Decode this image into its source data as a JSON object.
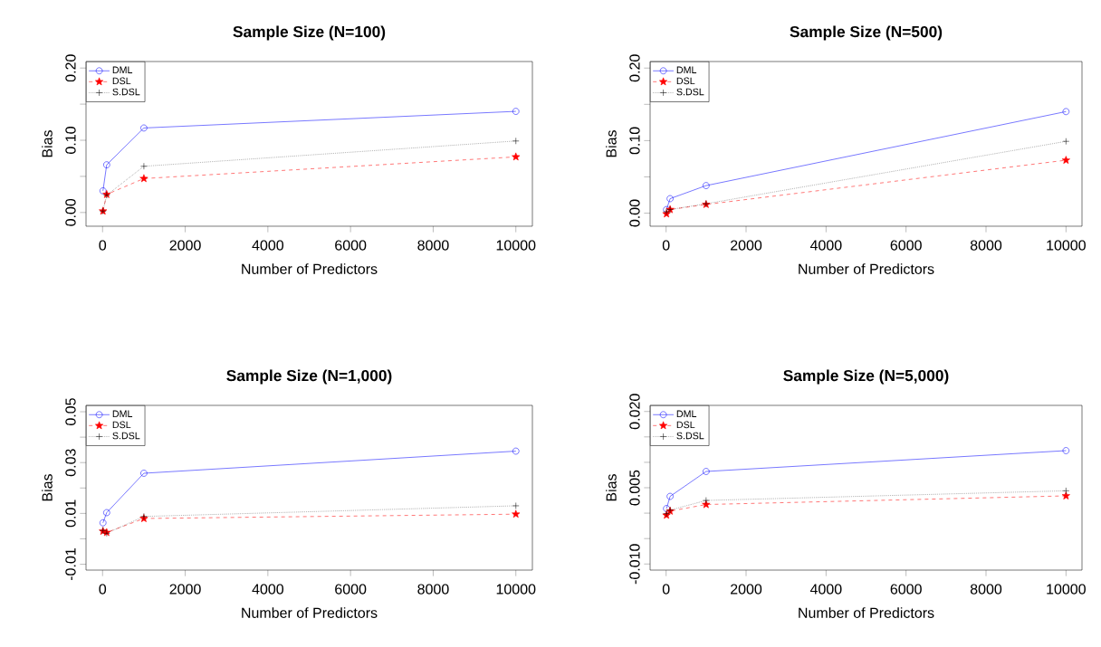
{
  "chart_data": [
    {
      "type": "line",
      "title": "Sample Size (N=100)",
      "xlabel": "Number of Predictors",
      "ylabel": "Bias",
      "x": [
        10,
        100,
        1000,
        10000
      ],
      "series": [
        {
          "name": "DML",
          "color": "#0000ff",
          "marker": "circle",
          "line_style": "solid",
          "values": [
            0.03,
            0.066,
            0.117,
            0.14
          ]
        },
        {
          "name": "DSL",
          "color": "#ff0000",
          "marker": "star",
          "line_style": "dashed",
          "values": [
            0.002,
            0.025,
            0.047,
            0.077
          ]
        },
        {
          "name": "S.DSL",
          "color": "#000000",
          "marker": "cross",
          "line_style": "dotted",
          "values": [
            0.002,
            0.024,
            0.064,
            0.099
          ]
        }
      ],
      "xlim": [
        -400,
        10400
      ],
      "ylim": [
        -0.019,
        0.209
      ],
      "xticks": [
        0,
        2000,
        4000,
        6000,
        8000,
        10000
      ],
      "yticks": [
        {
          "value": 0,
          "label": "0.00"
        },
        {
          "value": 0.05,
          "label": null
        },
        {
          "value": 0.1,
          "label": "0.10"
        },
        {
          "value": 0.15,
          "label": null
        },
        {
          "value": 0.2,
          "label": "0.20"
        }
      ],
      "legend": "top left"
    },
    {
      "type": "line",
      "title": "Sample Size (N=500)",
      "xlabel": "Number of Predictors",
      "ylabel": "Bias",
      "x": [
        10,
        100,
        1000,
        10000
      ],
      "series": [
        {
          "name": "DML",
          "color": "#0000ff",
          "marker": "circle",
          "line_style": "solid",
          "values": [
            0.005,
            0.02,
            0.038,
            0.14
          ]
        },
        {
          "name": "DSL",
          "color": "#ff0000",
          "marker": "star",
          "line_style": "dashed",
          "values": [
            -0.001,
            0.005,
            0.012,
            0.073
          ]
        },
        {
          "name": "S.DSL",
          "color": "#000000",
          "marker": "cross",
          "line_style": "dotted",
          "values": [
            0.002,
            0.005,
            0.013,
            0.099
          ]
        }
      ],
      "xlim": [
        -400,
        10400
      ],
      "ylim": [
        -0.018,
        0.209
      ],
      "xticks": [
        0,
        2000,
        4000,
        6000,
        8000,
        10000
      ],
      "yticks": [
        {
          "value": 0,
          "label": "0.00"
        },
        {
          "value": 0.05,
          "label": null
        },
        {
          "value": 0.1,
          "label": "0.10"
        },
        {
          "value": 0.15,
          "label": null
        },
        {
          "value": 0.2,
          "label": "0.20"
        }
      ],
      "legend": "top left"
    },
    {
      "type": "line",
      "title": "Sample Size (N=1,000)",
      "xlabel": "Number of Predictors",
      "ylabel": "Bias",
      "x": [
        10,
        100,
        1000,
        10000
      ],
      "series": [
        {
          "name": "DML",
          "color": "#0000ff",
          "marker": "circle",
          "line_style": "solid",
          "values": [
            0.0063,
            0.0103,
            0.0258,
            0.0345
          ]
        },
        {
          "name": "DSL",
          "color": "#ff0000",
          "marker": "star",
          "line_style": "dashed",
          "values": [
            0.003,
            0.0025,
            0.008,
            0.0097
          ]
        },
        {
          "name": "S.DSL",
          "color": "#000000",
          "marker": "cross",
          "line_style": "dotted",
          "values": [
            0.0033,
            0.0022,
            0.0088,
            0.013
          ]
        }
      ],
      "xlim": [
        -400,
        10400
      ],
      "ylim": [
        -0.0123,
        0.0525
      ],
      "xticks": [
        0,
        2000,
        4000,
        6000,
        8000,
        10000
      ],
      "yticks": [
        {
          "value": -0.01,
          "label": "-0.01"
        },
        {
          "value": 0,
          "label": null
        },
        {
          "value": 0.01,
          "label": "0.01"
        },
        {
          "value": 0.02,
          "label": null
        },
        {
          "value": 0.03,
          "label": "0.03"
        },
        {
          "value": 0.04,
          "label": null
        },
        {
          "value": 0.05,
          "label": "0.05"
        }
      ],
      "legend": "top left"
    },
    {
      "type": "line",
      "title": "Sample Size (N=5,000)",
      "xlabel": "Number of Predictors",
      "ylabel": "Bias",
      "x": [
        10,
        100,
        1000,
        10000
      ],
      "series": [
        {
          "name": "DML",
          "color": "#0000ff",
          "marker": "circle",
          "line_style": "solid",
          "values": [
            0.0009,
            0.0033,
            0.0082,
            0.0123
          ]
        },
        {
          "name": "DSL",
          "color": "#ff0000",
          "marker": "star",
          "line_style": "dashed",
          "values": [
            -0.0004,
            0.0004,
            0.0017,
            0.0034
          ]
        },
        {
          "name": "S.DSL",
          "color": "#000000",
          "marker": "cross",
          "line_style": "dotted",
          "values": [
            -0.0001,
            0.0006,
            0.0025,
            0.0044
          ]
        }
      ],
      "xlim": [
        -400,
        10400
      ],
      "ylim": [
        -0.0112,
        0.0212
      ],
      "xticks": [
        0,
        2000,
        4000,
        6000,
        8000,
        10000
      ],
      "yticks": [
        {
          "value": -0.01,
          "label": "-0.010"
        },
        {
          "value": -0.005,
          "label": null
        },
        {
          "value": 0,
          "label": null
        },
        {
          "value": 0.005,
          "label": "0.005"
        },
        {
          "value": 0.01,
          "label": null
        },
        {
          "value": 0.015,
          "label": null
        },
        {
          "value": 0.02,
          "label": "0.020"
        }
      ],
      "legend": "top left"
    }
  ]
}
